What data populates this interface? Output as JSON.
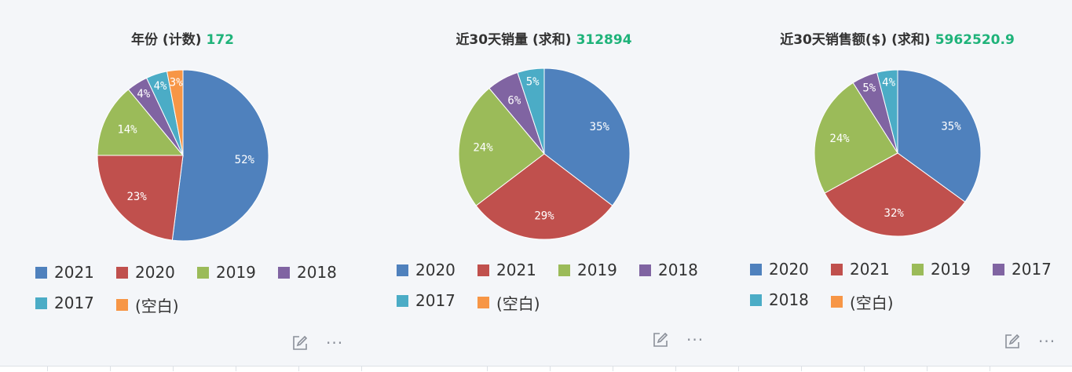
{
  "chart_data": [
    {
      "type": "pie",
      "title": "年份 (计数)",
      "total": "172",
      "labels": [
        "2021",
        "2020",
        "2019",
        "2018",
        "2017",
        "(空白)"
      ],
      "values": [
        52,
        23,
        14,
        4,
        4,
        3
      ],
      "value_labels": [
        "52%",
        "23%",
        "14%",
        "4%",
        "4%",
        "3%"
      ],
      "colors": [
        "#4f81bd",
        "#c0504d",
        "#9bbb59",
        "#8064a2",
        "#4bacc6",
        "#f79646"
      ],
      "legend_position": "bottom"
    },
    {
      "type": "pie",
      "title": "近30天销量 (求和)",
      "total": "312894",
      "labels": [
        "2020",
        "2021",
        "2019",
        "2018",
        "2017",
        "(空白)"
      ],
      "values": [
        35,
        29,
        24,
        6,
        5,
        0
      ],
      "value_labels": [
        "35%",
        "29%",
        "24%",
        "6%",
        "5%",
        ""
      ],
      "colors": [
        "#4f81bd",
        "#c0504d",
        "#9bbb59",
        "#8064a2",
        "#4bacc6",
        "#f79646"
      ],
      "legend_position": "bottom"
    },
    {
      "type": "pie",
      "title": "近30天销售额($) (求和)",
      "total": "5962520.9",
      "labels": [
        "2020",
        "2021",
        "2019",
        "2017",
        "2018",
        "(空白)"
      ],
      "values": [
        35,
        32,
        24,
        5,
        4,
        0
      ],
      "value_labels": [
        "35%",
        "32%",
        "24%",
        "5%",
        "4%",
        ""
      ],
      "colors": [
        "#4f81bd",
        "#c0504d",
        "#9bbb59",
        "#8064a2",
        "#4bacc6",
        "#f79646"
      ],
      "legend_position": "bottom"
    }
  ],
  "icons": {
    "edit": "edit-icon",
    "more": "more-icon",
    "more_glyph": "···"
  },
  "colors": {
    "metric_value": "#1fb37a",
    "icon": "#8a8f99"
  }
}
